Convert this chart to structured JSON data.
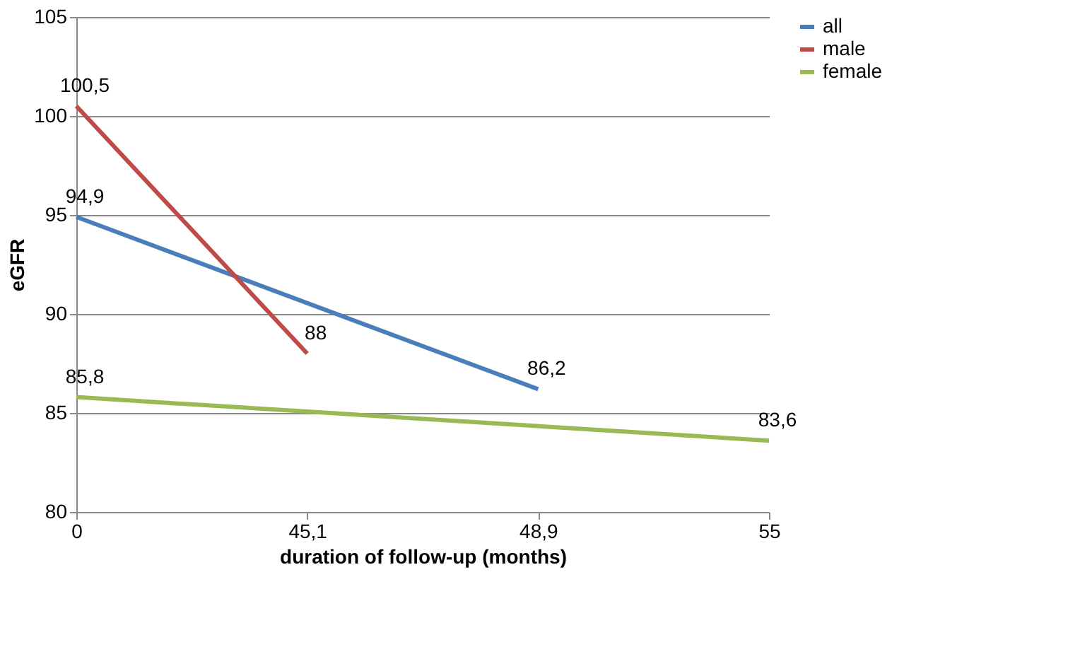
{
  "chart_data": {
    "type": "line",
    "xlabel": "duration of follow-up (months)",
    "ylabel": "eGFR",
    "categories": [
      "0",
      "45,1",
      "48,9",
      "55"
    ],
    "series": [
      {
        "name": "all",
        "color": "#4a7ebb",
        "values": [
          94.9,
          null,
          86.2,
          null
        ],
        "value_labels": [
          "94,9",
          null,
          "86,2",
          null
        ]
      },
      {
        "name": "male",
        "color": "#be4b48",
        "values": [
          100.5,
          88,
          null,
          null
        ],
        "value_labels": [
          "100,5",
          "88",
          null,
          null
        ]
      },
      {
        "name": "female",
        "color": "#98b954",
        "values": [
          85.8,
          null,
          null,
          83.6
        ],
        "value_labels": [
          "85,8",
          null,
          null,
          "83,6"
        ]
      }
    ],
    "ylim": [
      80,
      105
    ],
    "yticks": [
      80,
      85,
      90,
      95,
      100,
      105
    ],
    "grid": "y",
    "legend": "right",
    "marker": "none",
    "line_style": "solid"
  }
}
